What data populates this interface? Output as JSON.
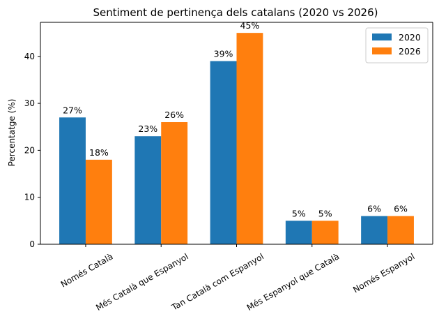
{
  "chart_data": {
    "type": "bar",
    "title": "Sentiment de pertinença dels catalans (2020 vs 2026)",
    "xlabel": "",
    "ylabel": "Percentatge (%)",
    "categories": [
      "Només Català",
      "Més Català que Espanyol",
      "Tan Català com Espanyol",
      "Més Espanyol que Català",
      "Només Espanyol"
    ],
    "series": [
      {
        "name": "2020",
        "values": [
          27,
          23,
          39,
          5,
          6
        ],
        "labels": [
          "27%",
          "23%",
          "39%",
          "5%",
          "6%"
        ],
        "color": "#1f77b4"
      },
      {
        "name": "2026",
        "values": [
          18,
          26,
          45,
          5,
          6
        ],
        "labels": [
          "18%",
          "26%",
          "45%",
          "5%",
          "6%"
        ],
        "color": "#ff7f0e"
      }
    ],
    "ylim": [
      0,
      47.25
    ],
    "yticks": [
      "0",
      "10",
      "20",
      "30",
      "40"
    ],
    "grid": false,
    "legend": "top-right"
  }
}
